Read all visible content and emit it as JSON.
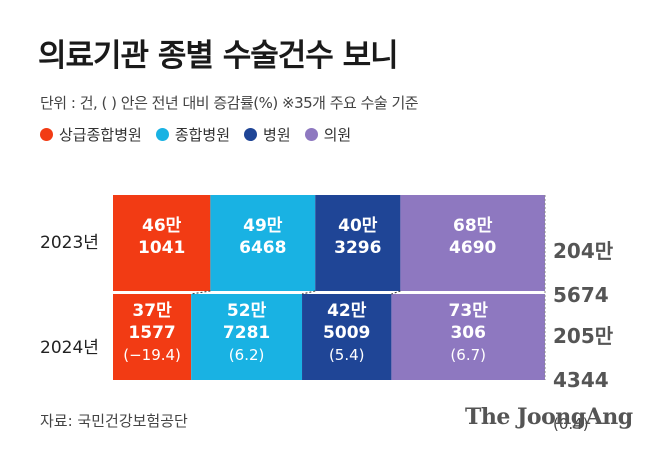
{
  "title": "의료기관 종별 수술건수 보니",
  "subtitle": "단위 : 건, ( ) 안은 전년 대비 증감률(%) ※35개 주요 수술 기준",
  "legend": [
    {
      "name": "상급종합병원",
      "color": "#f23b14"
    },
    {
      "name": "종합병원",
      "color": "#19b2e3"
    },
    {
      "name": "병원",
      "color": "#1f4596"
    },
    {
      "name": "의원",
      "color": "#8e78c0"
    }
  ],
  "source": "자료: 국민건강보험공단",
  "brand": "The JoongAng",
  "chart_data": {
    "type": "bar",
    "stacked": "horizontal",
    "categories": [
      "2023년",
      "2024년"
    ],
    "series": [
      {
        "name": "상급종합병원",
        "color": "#f23b14",
        "values": [
          461041,
          371577
        ],
        "labels": [
          [
            "46만",
            "1041"
          ],
          [
            "37만",
            "1577"
          ]
        ],
        "change_labels": [
          "",
          "(−19.4)"
        ]
      },
      {
        "name": "종합병원",
        "color": "#19b2e3",
        "values": [
          496468,
          527281
        ],
        "labels": [
          [
            "49만",
            "6468"
          ],
          [
            "52만",
            "7281"
          ]
        ],
        "change_labels": [
          "",
          "(6.2)"
        ]
      },
      {
        "name": "병원",
        "color": "#1f4596",
        "values": [
          403296,
          425009
        ],
        "labels": [
          [
            "40만",
            "3296"
          ],
          [
            "42만",
            "5009"
          ]
        ],
        "change_labels": [
          "",
          "(5.4)"
        ]
      },
      {
        "name": "의원",
        "color": "#8e78c0",
        "values": [
          684690,
          730306
        ],
        "labels": [
          [
            "68만",
            "4690"
          ],
          [
            "73만",
            "306"
          ]
        ],
        "change_labels": [
          "",
          "(6.7)"
        ]
      }
    ],
    "totals": [
      {
        "value": 2045674,
        "label": [
          "204만",
          "5674"
        ],
        "change": ""
      },
      {
        "value": 2054344,
        "label": [
          "205만",
          "4344"
        ],
        "change": "(0.4)"
      }
    ]
  }
}
